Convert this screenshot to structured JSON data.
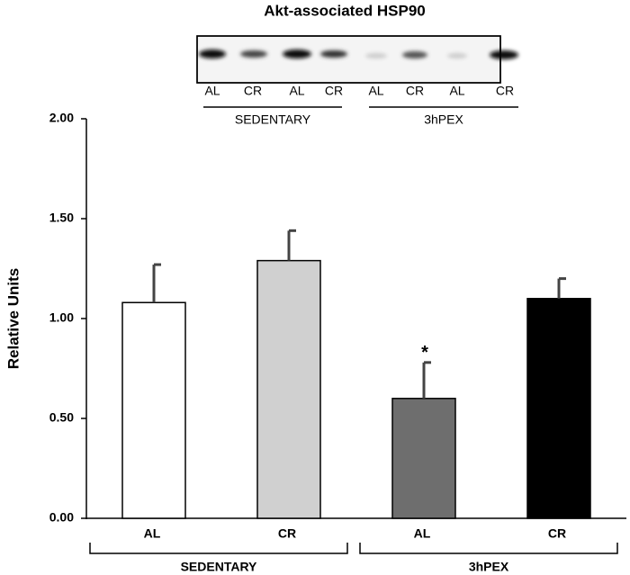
{
  "chart_data": {
    "type": "bar",
    "title": "Akt-associated HSP90",
    "y_label": "Relative  Units",
    "categories": [
      "AL",
      "CR",
      "AL",
      "CR"
    ],
    "groups": [
      "SEDENTARY",
      "3hPEX"
    ],
    "values": [
      1.08,
      1.29,
      0.6,
      1.1
    ],
    "errors": [
      0.19,
      0.15,
      0.18,
      0.1
    ],
    "colors": [
      "#ffffff",
      "#d0d0d0",
      "#6e6e6e",
      "#000000"
    ],
    "ylim": [
      0,
      2
    ],
    "yticks": [
      {
        "value": 0,
        "label": "0.00"
      },
      {
        "value": 0.5,
        "label": "0.50"
      },
      {
        "value": 1,
        "label": "1.00"
      },
      {
        "value": 1.5,
        "label": "1.50"
      },
      {
        "value": 2,
        "label": "2.00"
      }
    ],
    "annotations": [
      {
        "text": "*"
      }
    ],
    "blot": {
      "lanes": [
        "AL",
        "CR",
        "AL",
        "CR",
        "AL",
        "CR",
        "AL",
        "CR"
      ],
      "groups": [
        "SEDENTARY",
        "3hPEX"
      ]
    }
  }
}
